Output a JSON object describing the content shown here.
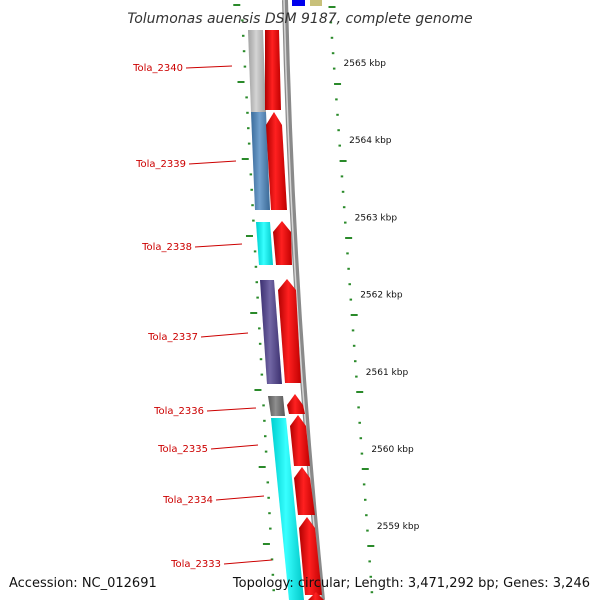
{
  "title": "Tolumonas auensis DSM 9187, complete genome",
  "footer": {
    "accession": "Accession: NC_012691",
    "summary": "Topology: circular; Length: 3,471,292 bp; Genes: 3,246"
  },
  "scale_ticks": [
    "2565 kbp",
    "2564 kbp",
    "2563 kbp",
    "2562 kbp",
    "2561 kbp",
    "2560 kbp",
    "2559 kbp"
  ],
  "genes": [
    {
      "label": "Tola_2340",
      "cog_color": "#c8c8c8"
    },
    {
      "label": "Tola_2339",
      "cog_color": "#4a86c0"
    },
    {
      "label": "Tola_2338",
      "cog_color": "#00ffff"
    },
    {
      "label": "Tola_2337",
      "cog_color": "#4b3c8c"
    },
    {
      "label": "Tola_2336",
      "cog_color": "#707070"
    },
    {
      "label": "Tola_2335",
      "cog_color": "#00ffff"
    },
    {
      "label": "Tola_2334",
      "cog_color": "#00ffff"
    },
    {
      "label": "Tola_2333",
      "cog_color": "#00ffff"
    }
  ],
  "colors": {
    "cds": "#ff0000",
    "label": "#cc0000",
    "tick": "#2a8a2a",
    "backbone": "#8a8a8a"
  }
}
